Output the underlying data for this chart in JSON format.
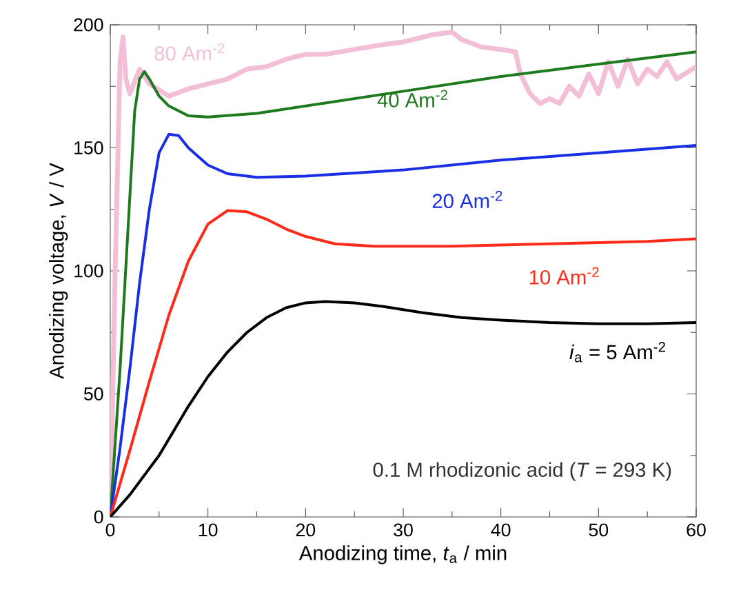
{
  "chart_data": {
    "type": "line",
    "xlabel": "Anodizing time, *t*$_{a}$ / min",
    "ylabel": "Anodizing voltage, *V* / V",
    "annotations": [
      "0.1 M rhodizonic acid (*T* = 293 K)"
    ],
    "xlim": [
      0,
      60
    ],
    "ylim": [
      0,
      200
    ],
    "xticks": [
      0,
      10,
      20,
      30,
      40,
      50,
      60
    ],
    "yticks": [
      0,
      50,
      100,
      150,
      200
    ],
    "grid": false,
    "legend": false,
    "marker": "none",
    "line_style": "solid",
    "series": [
      {
        "name": "80 Am$^{-2}$",
        "color": "#f2bfd6",
        "x": [
          0,
          0.5,
          1,
          1.3,
          1.6,
          2,
          3,
          4,
          6,
          8,
          10,
          12,
          14,
          16,
          18,
          20,
          22,
          25,
          28,
          30,
          33,
          35,
          36,
          38,
          40,
          41.5,
          42,
          43,
          44,
          45,
          46,
          47,
          48,
          49,
          50,
          51,
          52,
          53,
          54,
          55,
          56,
          57,
          58,
          60
        ],
        "values": [
          0,
          100,
          185,
          195,
          178,
          172,
          182,
          176,
          171,
          174,
          176,
          178,
          182,
          183,
          186,
          188,
          188,
          190,
          192,
          193,
          196,
          197,
          194,
          191,
          190,
          189,
          180,
          172,
          168,
          170,
          168,
          175,
          171,
          180,
          172,
          185,
          175,
          186,
          176,
          182,
          179,
          185,
          178,
          183
        ]
      },
      {
        "name": "40 Am$^{-2}$",
        "color": "#1e7a1e",
        "x": [
          0,
          1,
          2,
          2.5,
          3,
          3.5,
          4,
          5,
          6,
          8,
          10,
          15,
          20,
          30,
          40,
          50,
          60
        ],
        "values": [
          0,
          60,
          130,
          165,
          178,
          181,
          178,
          171,
          167,
          163,
          162.5,
          164,
          167,
          173,
          179,
          184,
          189
        ]
      },
      {
        "name": "20 Am$^{-2}$",
        "color": "#1a2ee6",
        "x": [
          0,
          1,
          2,
          3,
          4,
          5,
          6,
          7,
          8,
          10,
          12,
          15,
          20,
          30,
          40,
          50,
          60
        ],
        "values": [
          0,
          28,
          60,
          95,
          125,
          148,
          155.5,
          155,
          150,
          143,
          139.5,
          138,
          138.5,
          141,
          145,
          148,
          151
        ]
      },
      {
        "name": "10 Am$^{-2}$",
        "color": "#ff2a1a",
        "x": [
          0,
          2,
          4,
          6,
          8,
          10,
          12,
          14,
          16,
          18,
          20,
          23,
          27,
          35,
          45,
          55,
          60
        ],
        "values": [
          0,
          27,
          55,
          82,
          104,
          119,
          124.5,
          124,
          121,
          117,
          114,
          111,
          110,
          110,
          111,
          112,
          113
        ]
      },
      {
        "name": "*i*$_{a}$ = 5 Am$^{-2}$",
        "color": "#000000",
        "x": [
          0,
          2,
          5,
          8,
          10,
          12,
          14,
          16,
          18,
          20,
          22,
          25,
          28,
          32,
          36,
          40,
          45,
          50,
          55,
          60
        ],
        "values": [
          0,
          9,
          25,
          45,
          57,
          67,
          75,
          81,
          85,
          87,
          87.5,
          87,
          85.5,
          83,
          81,
          80,
          79,
          78.5,
          78.5,
          79
        ]
      }
    ]
  }
}
